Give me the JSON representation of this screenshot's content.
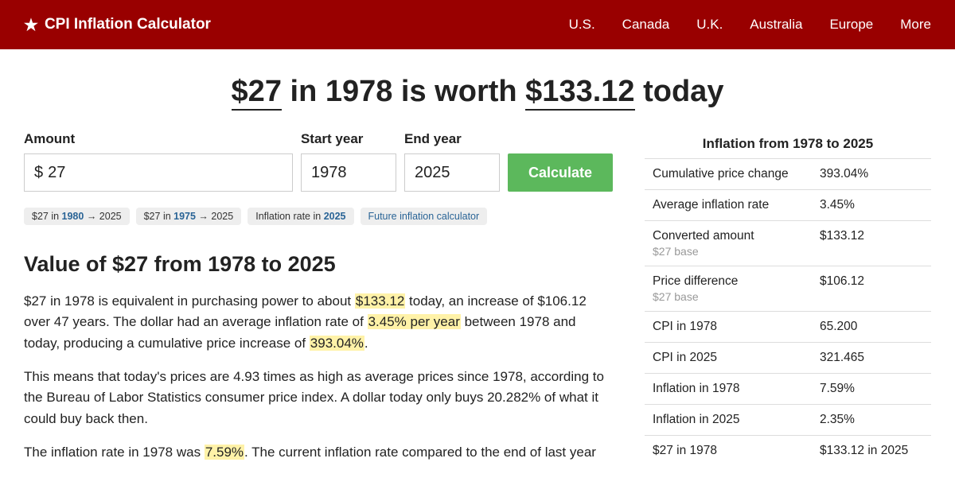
{
  "colors": {
    "header_bg": "#990000",
    "button_bg": "#5cb85c",
    "chip_bg": "#eeeeee",
    "link_blue": "#2a6496",
    "highlight_bg": "#fff2a8",
    "border": "#dddddd",
    "muted": "#999999"
  },
  "header": {
    "brand": "CPI Inflation Calculator",
    "nav": [
      "U.S.",
      "Canada",
      "U.K.",
      "Australia",
      "Europe",
      "More"
    ]
  },
  "title": {
    "amount": "$27",
    "mid": " in 1978 is worth ",
    "result": "$133.12",
    "tail": " today"
  },
  "form": {
    "amount_label": "Amount",
    "amount_currency": "$",
    "amount_value": "27",
    "start_label": "Start year",
    "start_value": "1978",
    "end_label": "End year",
    "end_value": "2025",
    "button": "Calculate"
  },
  "chips": [
    {
      "pre": "$27 in ",
      "bold": "1980",
      "post": " → 2025"
    },
    {
      "pre": "$27 in ",
      "bold": "1975",
      "post": " → 2025"
    },
    {
      "pre": "Inflation rate in ",
      "bold": "2025",
      "post": ""
    },
    {
      "pre": "",
      "bold": "",
      "post": "Future inflation calculator",
      "plain": true
    }
  ],
  "section_heading": "Value of $27 from 1978 to 2025",
  "para1": {
    "a": "$27 in 1978 is equivalent in purchasing power to about ",
    "h1": "$133.12",
    "b": " today, an increase of $106.12 over 47 years. The dollar had an average inflation rate of ",
    "h2": "3.45% per year",
    "c": " between 1978 and today, producing a cumulative price increase of ",
    "h3": "393.04%",
    "d": "."
  },
  "para2": "This means that today's prices are 4.93 times as high as average prices since 1978, according to the Bureau of Labor Statistics consumer price index. A dollar today only buys 20.282% of what it could buy back then.",
  "para3": {
    "a": "The inflation rate in 1978 was ",
    "h1": "7.59%",
    "b": ". The current inflation rate compared to the end of last year"
  },
  "sidebar": {
    "title": "Inflation from 1978 to 2025",
    "rows": [
      {
        "k": "Cumulative price change",
        "v": "393.04%"
      },
      {
        "k": "Average inflation rate",
        "v": "3.45%"
      },
      {
        "k": "Converted amount",
        "sub": "$27 base",
        "v": "$133.12"
      },
      {
        "k": "Price difference",
        "sub": "$27 base",
        "v": "$106.12"
      },
      {
        "k": "CPI in 1978",
        "v": "65.200"
      },
      {
        "k": "CPI in 2025",
        "v": "321.465"
      },
      {
        "k": "Inflation in 1978",
        "v": "7.59%"
      },
      {
        "k": "Inflation in 2025",
        "v": "2.35%"
      },
      {
        "k": "$27 in 1978",
        "v": "$133.12 in 2025"
      }
    ]
  }
}
